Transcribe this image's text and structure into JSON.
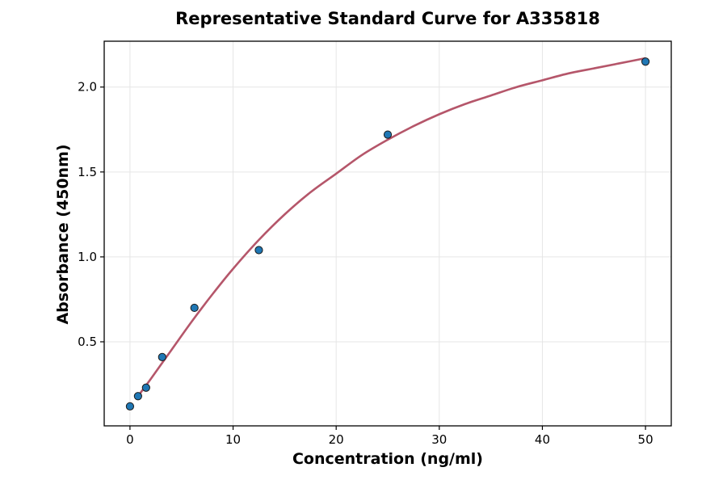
{
  "chart_data": {
    "type": "scatter",
    "title": "Representative Standard Curve for A335818",
    "xlabel": "Concentration (ng/ml)",
    "ylabel": "Absorbance (450nm)",
    "xlim": [
      -2.5,
      52.5
    ],
    "ylim": [
      0.005,
      2.27
    ],
    "x_ticks": [
      0,
      10,
      20,
      30,
      40,
      50
    ],
    "y_ticks": [
      0.5,
      1.0,
      1.5,
      2.0
    ],
    "x_tick_labels": [
      "0",
      "10",
      "20",
      "30",
      "40",
      "50"
    ],
    "y_tick_labels": [
      "0.5",
      "1.0",
      "1.5",
      "2.0"
    ],
    "grid": true,
    "series": [
      {
        "kind": "points",
        "x": [
          0,
          0.78,
          1.56,
          3.125,
          6.25,
          12.5,
          25,
          50
        ],
        "y": [
          0.12,
          0.18,
          0.23,
          0.41,
          0.7,
          1.04,
          1.72,
          2.15
        ],
        "color": "#1f77b4"
      },
      {
        "kind": "fit-curve",
        "x": [
          0.78,
          2,
          4,
          6,
          8,
          10,
          12.5,
          15,
          17.5,
          20,
          22.5,
          25,
          27.5,
          30,
          32.5,
          35,
          37.5,
          40,
          42.5,
          45,
          47.5,
          50
        ],
        "y": [
          0.18,
          0.28,
          0.45,
          0.62,
          0.78,
          0.93,
          1.1,
          1.25,
          1.38,
          1.49,
          1.6,
          1.69,
          1.77,
          1.84,
          1.9,
          1.95,
          2.0,
          2.04,
          2.08,
          2.11,
          2.14,
          2.17
        ],
        "color": "#b5566a"
      }
    ]
  }
}
